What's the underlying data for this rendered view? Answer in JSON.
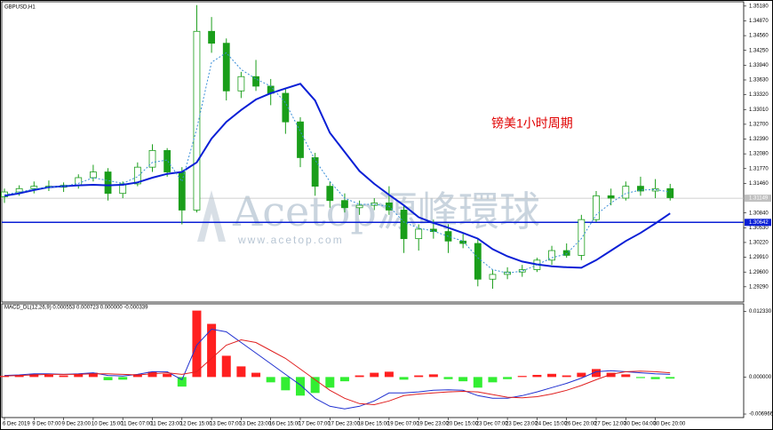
{
  "chart_data": [
    {
      "type": "candlestick",
      "title": "GBPUSD,H1",
      "annotation": "镑美1小时周期",
      "watermark": {
        "brand": "Acetop源峰環球",
        "url": "www.acetop.com"
      },
      "categories": [
        "6 Dec 2019",
        null,
        "9 Dec 07:00",
        null,
        "9 Dec 23:00",
        null,
        "10 Dec 15:00",
        null,
        "11 Dec 07:00",
        null,
        "11 Dec 23:00",
        null,
        "12 Dec 15:00",
        null,
        "13 Dec 07:00",
        null,
        "13 Dec 23:00",
        null,
        "16 Dec 15:00",
        null,
        "17 Dec 07:00",
        null,
        "17 Dec 23:00",
        null,
        "18 Dec 15:00",
        null,
        "19 Dec 07:00",
        null,
        "19 Dec 23:00",
        null,
        "20 Dec 15:00",
        null,
        "23 Dec 07:00",
        null,
        "23 Dec 23:00",
        null,
        "24 Dec 15:00",
        null,
        "26 Dec 20:00",
        null,
        "27 Dec 12:00",
        null,
        "30 Dec 04:00",
        null,
        "30 Dec 20:00",
        null
      ],
      "open": [
        1.3118,
        1.3128,
        1.3135,
        1.314,
        1.3138,
        1.3142,
        1.3158,
        1.317,
        1.3125,
        1.3145,
        1.318,
        1.3215,
        1.317,
        1.309,
        1.3465,
        1.344,
        1.334,
        1.337,
        1.335,
        1.3335,
        1.3275,
        1.32,
        1.314,
        1.311,
        1.3095,
        1.31,
        1.3105,
        1.309,
        1.303,
        1.305,
        1.3045,
        1.3025,
        1.302,
        1.2945,
        1.2955,
        1.296,
        1.2965,
        1.2985,
        1.3005,
        1.2995,
        1.307,
        1.312,
        1.3115,
        1.314,
        1.313,
        1.3135
      ],
      "high": [
        1.3135,
        1.3142,
        1.315,
        1.3152,
        1.3148,
        1.3165,
        1.3185,
        1.3178,
        1.315,
        1.319,
        1.3228,
        1.322,
        1.318,
        1.352,
        1.3495,
        1.345,
        1.338,
        1.3405,
        1.3365,
        1.3345,
        1.3285,
        1.321,
        1.315,
        1.3125,
        1.311,
        1.3115,
        1.314,
        1.31,
        1.306,
        1.307,
        1.306,
        1.304,
        1.303,
        1.2965,
        1.297,
        1.2975,
        1.299,
        1.3015,
        1.302,
        1.308,
        1.313,
        1.3135,
        1.315,
        1.316,
        1.3155,
        1.3145
      ],
      "low": [
        1.3105,
        1.312,
        1.3125,
        1.313,
        1.3128,
        1.3135,
        1.315,
        1.311,
        1.3115,
        1.314,
        1.317,
        1.316,
        1.306,
        1.3085,
        1.342,
        1.332,
        1.3325,
        1.334,
        1.331,
        1.325,
        1.318,
        1.312,
        1.3095,
        1.3085,
        1.308,
        1.309,
        1.308,
        1.3,
        1.3005,
        1.303,
        1.3,
        1.301,
        1.293,
        1.2925,
        1.2945,
        1.295,
        1.296,
        1.2975,
        1.299,
        1.2985,
        1.3065,
        1.31,
        1.311,
        1.312,
        1.3115,
        1.311
      ],
      "close": [
        1.3128,
        1.3135,
        1.314,
        1.3138,
        1.3142,
        1.3158,
        1.317,
        1.3125,
        1.3145,
        1.318,
        1.3215,
        1.317,
        1.309,
        1.3465,
        1.344,
        1.334,
        1.337,
        1.335,
        1.3335,
        1.3275,
        1.32,
        1.314,
        1.311,
        1.3095,
        1.31,
        1.3105,
        1.309,
        1.303,
        1.305,
        1.3045,
        1.3025,
        1.302,
        1.2945,
        1.2955,
        1.296,
        1.2965,
        1.2985,
        1.3005,
        1.2995,
        1.307,
        1.312,
        1.3115,
        1.314,
        1.313,
        1.3135,
        1.3116
      ],
      "candle_color": "#1a9e1a",
      "lines": [
        {
          "color": "#0a1fd6",
          "style": "solid",
          "values": [
            1.312,
            1.3125,
            1.3132,
            1.3138,
            1.314,
            1.3142,
            1.3143,
            1.3142,
            1.3143,
            1.3148,
            1.3158,
            1.3166,
            1.317,
            1.319,
            1.324,
            1.3275,
            1.33,
            1.3322,
            1.3335,
            1.3345,
            1.3355,
            1.332,
            1.3252,
            1.3212,
            1.3172,
            1.3145,
            1.3122,
            1.31,
            1.3075,
            1.3063,
            1.3053,
            1.3042,
            1.303,
            1.3008,
            1.2993,
            1.2982,
            1.2976,
            1.2972,
            1.297,
            1.2969,
            1.2985,
            1.3005,
            1.3025,
            1.3042,
            1.3062,
            1.3083
          ]
        },
        {
          "color": "#3a8fd8",
          "style": "dotted",
          "values": [
            1.3122,
            1.3128,
            1.3134,
            1.3138,
            1.314,
            1.3146,
            1.3158,
            1.3152,
            1.3146,
            1.316,
            1.319,
            1.3195,
            1.315,
            1.326,
            1.34,
            1.342,
            1.3385,
            1.3365,
            1.335,
            1.3315,
            1.3255,
            1.3195,
            1.315,
            1.3115,
            1.3102,
            1.3102,
            1.3098,
            1.3065,
            1.3052,
            1.3046,
            1.3035,
            1.3025,
            1.299,
            1.2965,
            1.2958,
            1.2962,
            1.2975,
            1.299,
            1.2998,
            1.303,
            1.308,
            1.3105,
            1.3125,
            1.3132,
            1.3133,
            1.3128
          ]
        }
      ],
      "hline": 1.30642,
      "hline_color": "#0a1fd6",
      "current_price": 1.31149,
      "current_price_color": "#c0c0c0",
      "ylim": [
        1.2897,
        1.3527
      ],
      "yticks": [
        {
          "value": 1.3518,
          "label": "1.35180"
        },
        {
          "value": 1.3487,
          "label": "1.34870"
        },
        {
          "value": 1.3456,
          "label": "1.34560"
        },
        {
          "value": 1.3425,
          "label": "1.34250"
        },
        {
          "value": 1.3394,
          "label": "1.33940"
        },
        {
          "value": 1.3363,
          "label": "1.33630"
        },
        {
          "value": 1.3332,
          "label": "1.33320"
        },
        {
          "value": 1.3301,
          "label": "1.33010"
        },
        {
          "value": 1.327,
          "label": "1.32700"
        },
        {
          "value": 1.3239,
          "label": "1.32390"
        },
        {
          "value": 1.3208,
          "label": "1.32080"
        },
        {
          "value": 1.3177,
          "label": "1.31770"
        },
        {
          "value": 1.3146,
          "label": "1.31460"
        },
        {
          "value": 1.3084,
          "label": "1.30840"
        },
        {
          "value": 1.3053,
          "label": "1.30530"
        },
        {
          "value": 1.3022,
          "label": "1.30220"
        },
        {
          "value": 1.2991,
          "label": "1.29910"
        },
        {
          "value": 1.296,
          "label": "1.29600"
        },
        {
          "value": 1.2929,
          "label": "1.29290"
        }
      ]
    },
    {
      "type": "macd",
      "title": "MACD_DL(12,26,9) 0.000553 0.000723 0.000000 -0.000339",
      "values": [
        0.0002,
        0.0004,
        0.0006,
        0.0004,
        0.0003,
        0.0006,
        0.0008,
        -0.0006,
        -0.0005,
        0.0005,
        0.001,
        0.0006,
        -0.0018,
        0.0125,
        0.01,
        0.004,
        0.002,
        0.0008,
        -0.001,
        -0.0025,
        -0.0035,
        -0.003,
        -0.002,
        -0.0008,
        0.0003,
        0.0008,
        0.001,
        -0.0005,
        0.0003,
        0.0005,
        -0.0004,
        -0.0008,
        -0.002,
        -0.001,
        -0.0004,
        0.0002,
        0.0004,
        0.0006,
        0.0003,
        0.0008,
        0.0015,
        0.0008,
        0.0005,
        -0.0002,
        -0.0004,
        -0.0003
      ],
      "positive_color": "#ff2020",
      "negative_color": "#33ee33",
      "lines": [
        {
          "color": "#2030d0",
          "values": [
            0.0003,
            0.0004,
            0.0006,
            0.0006,
            0.0005,
            0.0006,
            0.0008,
            0.0003,
            0.0002,
            0.0005,
            0.001,
            0.001,
            -0.0005,
            0.006,
            0.009,
            0.0085,
            0.0065,
            0.0045,
            0.0025,
            0.0005,
            -0.0015,
            -0.004,
            -0.0055,
            -0.006,
            -0.0055,
            -0.0045,
            -0.003,
            -0.003,
            -0.0028,
            -0.0025,
            -0.0024,
            -0.0025,
            -0.0035,
            -0.004,
            -0.004,
            -0.0035,
            -0.0028,
            -0.002,
            -0.0012,
            -0.0002,
            0.001,
            0.0012,
            0.001,
            0.0008,
            0.0006,
            0.0005
          ]
        },
        {
          "color": "#e02020",
          "values": [
            0.0002,
            0.0003,
            0.0004,
            0.0005,
            0.0005,
            0.0005,
            0.0006,
            0.0006,
            0.0005,
            0.0004,
            0.0006,
            0.0008,
            0.0005,
            0.001,
            0.0035,
            0.006,
            0.007,
            0.0065,
            0.005,
            0.0035,
            0.0015,
            -0.0005,
            -0.0025,
            -0.004,
            -0.005,
            -0.0052,
            -0.0045,
            -0.0035,
            -0.0032,
            -0.003,
            -0.0028,
            -0.0027,
            -0.0028,
            -0.0033,
            -0.0038,
            -0.0039,
            -0.0037,
            -0.0032,
            -0.0025,
            -0.0016,
            -0.0005,
            0.0005,
            0.001,
            0.0011,
            0.001,
            0.0008
          ]
        }
      ],
      "ylim": [
        -0.00763,
        0.01377
      ],
      "yticks": [
        {
          "value": 0.01233,
          "label": "0.012330"
        },
        {
          "value": 0,
          "label": "0.000000"
        },
        -0.006966
      ]
    }
  ]
}
